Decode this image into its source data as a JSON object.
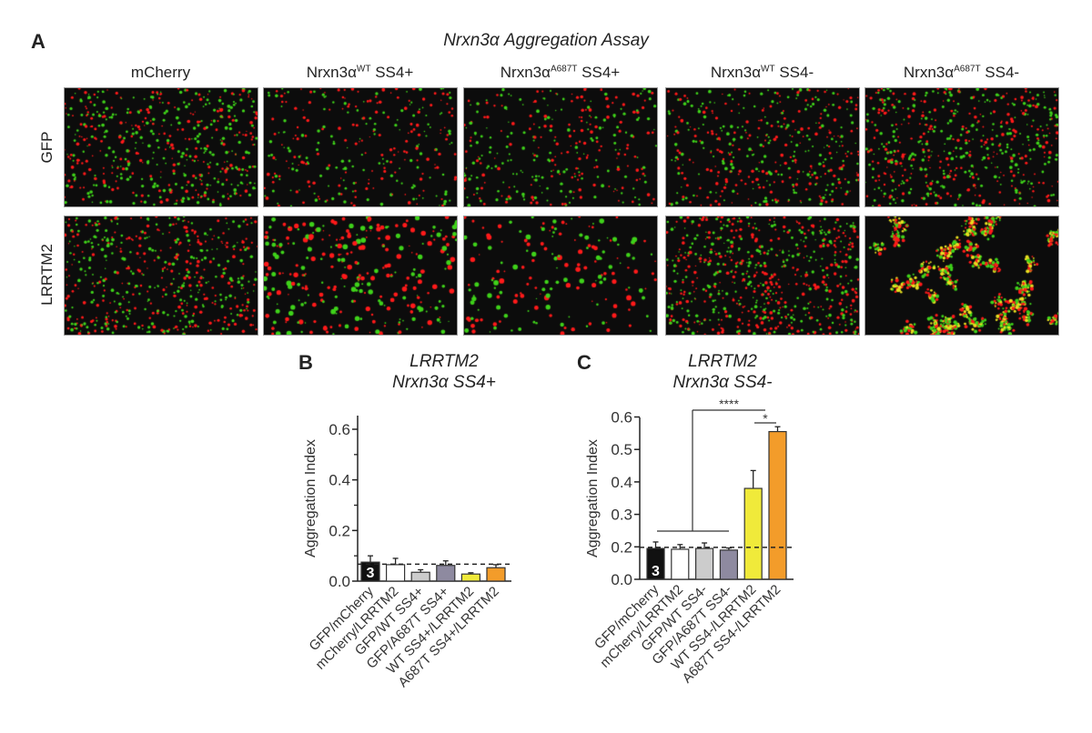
{
  "panelA": {
    "letter": "A",
    "title": "Nrxn3α Aggregation Assay",
    "columns": [
      {
        "base": "mCherry",
        "sup": "",
        "suffix": ""
      },
      {
        "base": "Nrxn3α",
        "sup": "WT",
        "suffix": " SS4+"
      },
      {
        "base": "Nrxn3α",
        "sup": "A687T",
        "suffix": " SS4+"
      },
      {
        "base": "Nrxn3α",
        "sup": "WT",
        "suffix": " SS4-"
      },
      {
        "base": "Nrxn3α",
        "sup": "A687T",
        "suffix": " SS4-"
      }
    ],
    "rows": [
      "GFP",
      "LRRTM2"
    ],
    "colors": {
      "red": "#ff1a1a",
      "green": "#3fd21a",
      "yellow": "#e8e020",
      "background": "#0c0c0c"
    }
  },
  "panelB": {
    "letter": "B",
    "title_line1": "LRRTM2",
    "title_line2": "Nrxn3α SS4+"
  },
  "panelC": {
    "letter": "C",
    "title_line1": "LRRTM2",
    "title_line2": "Nrxn3α SS4-"
  },
  "chart_data": [
    {
      "type": "bar",
      "title": "LRRTM2 Nrxn3α SS4+",
      "ylabel": "Aggregation Index",
      "ylim": [
        0,
        0.65
      ],
      "yticks": [
        0.0,
        0.2,
        0.4,
        0.6
      ],
      "ytick_labels": [
        "0.0",
        "0.2",
        "0.4",
        "0.6"
      ],
      "categories": [
        "GFP/mCherry",
        "mCherry/LRRTM2",
        "GFP/WT SS4+",
        "GFP/A687T SS4+",
        "WT SS4+/LRRTM2",
        "A687T SS4+/LRRTM2"
      ],
      "values": [
        0.075,
        0.065,
        0.035,
        0.062,
        0.028,
        0.053
      ],
      "errors": [
        0.025,
        0.025,
        0.01,
        0.018,
        0.005,
        0.012
      ],
      "colors": [
        "#111111",
        "#ffffff",
        "#cccccc",
        "#8e8aa0",
        "#f0ea3a",
        "#f39c2a"
      ],
      "bar_annotation": {
        "index": 0,
        "text": "3"
      },
      "reference_line": 0.067
    },
    {
      "type": "bar",
      "title": "LRRTM2 Nrxn3α SS4-",
      "ylabel": "Aggregation Index",
      "ylim": [
        0,
        0.62
      ],
      "axis_break": [
        0.0,
        0.2
      ],
      "yticks": [
        0.0,
        0.2,
        0.3,
        0.4,
        0.5,
        0.6
      ],
      "ytick_labels": [
        "0.0",
        "0.2",
        "0.3",
        "0.4",
        "0.5",
        "0.6"
      ],
      "categories": [
        "GFP/mCherry",
        "mCherry/LRRTM2",
        "GFP/WT SS4-",
        "GFP/A687T SS4-",
        "WT SS4-/LRRTM2",
        "A687T SS4-/LRRTM2"
      ],
      "values": [
        0.19,
        0.185,
        0.19,
        0.18,
        0.38,
        0.555
      ],
      "errors": [
        0.025,
        0.022,
        0.022,
        0.013,
        0.055,
        0.015
      ],
      "colors": [
        "#111111",
        "#ffffff",
        "#cccccc",
        "#8e8aa0",
        "#f0ea3a",
        "#f39c2a"
      ],
      "bar_annotation": {
        "index": 0,
        "text": "3"
      },
      "reference_line": 0.197,
      "significance": [
        {
          "label": "****",
          "from": "groups 1-4",
          "to": "WT SS4-/LRRTM2"
        },
        {
          "label": "*",
          "from": "WT SS4-/LRRTM2",
          "to": "A687T SS4-/LRRTM2"
        }
      ]
    }
  ]
}
